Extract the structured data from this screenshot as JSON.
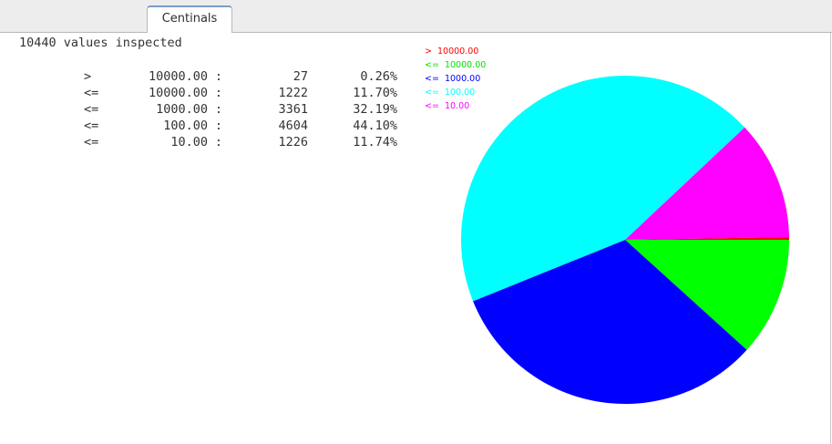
{
  "tabs": [
    {
      "label": "Centinals"
    }
  ],
  "summary": "10440 values inspected",
  "table": {
    "rows": [
      {
        "op": ">",
        "threshold": "10000.00",
        "sep": ":",
        "count": "27",
        "percent": "0.26%"
      },
      {
        "op": "<=",
        "threshold": "10000.00",
        "sep": ":",
        "count": "1222",
        "percent": "11.70%"
      },
      {
        "op": "<=",
        "threshold": "1000.00",
        "sep": ":",
        "count": "3361",
        "percent": "32.19%"
      },
      {
        "op": "<=",
        "threshold": "100.00",
        "sep": ":",
        "count": "4604",
        "percent": "44.10%"
      },
      {
        "op": "<=",
        "threshold": "10.00",
        "sep": ":",
        "count": "1226",
        "percent": "11.74%"
      }
    ]
  },
  "chart_data": {
    "type": "pie",
    "legend_position": "top-left",
    "slices": [
      {
        "label": ">  10000.00",
        "op": ">",
        "value_label": "10000.00",
        "count": 27,
        "percent": 0.26,
        "color": "#ff0000"
      },
      {
        "label": "<=  10000.00",
        "op": "<=",
        "value_label": "10000.00",
        "count": 1222,
        "percent": 11.7,
        "color": "#00ff00"
      },
      {
        "label": "<=  1000.00",
        "op": "<=",
        "value_label": "1000.00",
        "count": 3361,
        "percent": 32.19,
        "color": "#0000ff"
      },
      {
        "label": "<=  100.00",
        "op": "<=",
        "value_label": "100.00",
        "count": 4604,
        "percent": 44.1,
        "color": "#00ffff"
      },
      {
        "label": "<=  10.00",
        "op": "<=",
        "value_label": "10.00",
        "count": 1226,
        "percent": 11.74,
        "color": "#ff00ff"
      }
    ]
  }
}
